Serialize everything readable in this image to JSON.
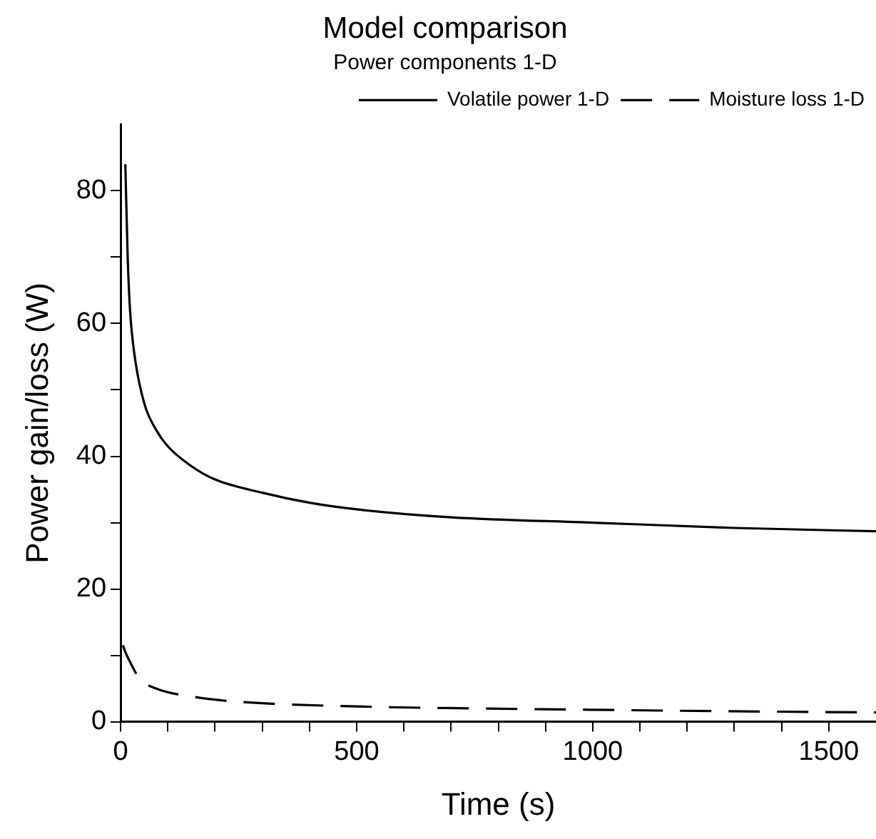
{
  "chart_data": {
    "type": "line",
    "title": "Model comparison",
    "subtitle": "Power components 1-D",
    "xlabel": "Time (s)",
    "ylabel": "Power gain/loss (W)",
    "xlim": [
      0,
      1600
    ],
    "ylim": [
      0,
      90
    ],
    "xticks": [
      0,
      {
        "value": 100,
        "label": null
      },
      {
        "value": 200,
        "label": null
      },
      {
        "value": 300,
        "label": null
      },
      {
        "value": 400,
        "label": null
      },
      500,
      {
        "value": 600,
        "label": null
      },
      {
        "value": 700,
        "label": null
      },
      {
        "value": 800,
        "label": null
      },
      {
        "value": 900,
        "label": null
      },
      1000,
      {
        "value": 1100,
        "label": null
      },
      {
        "value": 1200,
        "label": null
      },
      {
        "value": 1300,
        "label": null
      },
      {
        "value": 1400,
        "label": null
      },
      1500
    ],
    "yticks": [
      0,
      {
        "value": 10,
        "label": null
      },
      20,
      {
        "value": 30,
        "label": null
      },
      40,
      {
        "value": 50,
        "label": null
      },
      60,
      {
        "value": 70,
        "label": null
      },
      80
    ],
    "grid": false,
    "legend": "top right",
    "marker": "none",
    "series": [
      {
        "name": "Volatile power 1-D",
        "color": "#000000",
        "line_style": "solid",
        "x": [
          10,
          15,
          20,
          30,
          50,
          75,
          100,
          150,
          200,
          300,
          400,
          500,
          700,
          1000,
          1300,
          1600
        ],
        "values": [
          84,
          70,
          62,
          55,
          48,
          44,
          41.5,
          38.5,
          36.5,
          34.5,
          33,
          32,
          30.8,
          30,
          29.2,
          28.7
        ]
      },
      {
        "name": "Moisture loss 1-D",
        "color": "#000000",
        "line_style": "dashed",
        "x": [
          5,
          10,
          20,
          40,
          75,
          150,
          250,
          500,
          750,
          1000,
          1250,
          1600
        ],
        "values": [
          11.5,
          10.5,
          9,
          6.5,
          5,
          3.8,
          3,
          2.3,
          2,
          1.8,
          1.6,
          1.4
        ]
      }
    ]
  }
}
